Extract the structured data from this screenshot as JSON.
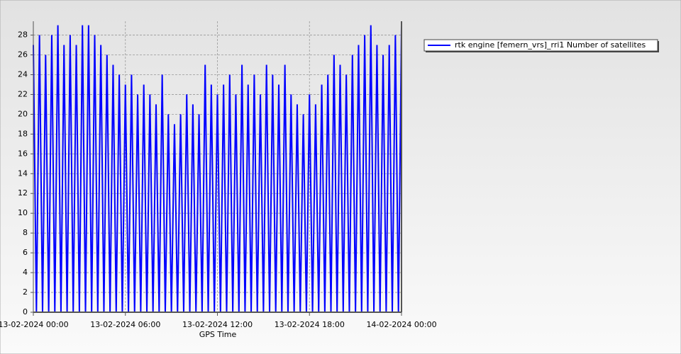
{
  "chart_data": {
    "type": "line",
    "xlabel": "GPS Time",
    "x": [
      0,
      0.2,
      0.4,
      0.6,
      0.8,
      1,
      1.2,
      1.4,
      1.6,
      1.8,
      2,
      2.2,
      2.4,
      2.6,
      2.8,
      3,
      3.2,
      3.4,
      3.6,
      3.8,
      4,
      4.2,
      4.4,
      4.6,
      4.8,
      5,
      5.2,
      5.4,
      5.6,
      5.8,
      6,
      6.2,
      6.4,
      6.6,
      6.8,
      7,
      7.2,
      7.4,
      7.6,
      7.8,
      8,
      8.2,
      8.4,
      8.6,
      8.8,
      9,
      9.2,
      9.4,
      9.6,
      9.8,
      10,
      10.2,
      10.4,
      10.6,
      10.8,
      11,
      11.2,
      11.4,
      11.6,
      11.8,
      12,
      12.2,
      12.4,
      12.6,
      12.8,
      13,
      13.2,
      13.4,
      13.6,
      13.8,
      14,
      14.2,
      14.4,
      14.6,
      14.8,
      15,
      15.2,
      15.4,
      15.6,
      15.8,
      16,
      16.2,
      16.4,
      16.6,
      16.8,
      17,
      17.2,
      17.4,
      17.6,
      17.8,
      18,
      18.2,
      18.4,
      18.6,
      18.8,
      19,
      19.2,
      19.4,
      19.6,
      19.8,
      20,
      20.2,
      20.4,
      20.6,
      20.8,
      21,
      21.2,
      21.4,
      21.6,
      21.8,
      22,
      22.2,
      22.4,
      22.6,
      22.8,
      23,
      23.2,
      23.4,
      23.6,
      23.8,
      24
    ],
    "series": [
      {
        "name": "rtk engine [femern_vrs]_rri1 Number of satellites",
        "color": "#0000ff",
        "values": [
          27,
          0,
          28,
          0,
          26,
          0,
          28,
          0,
          29,
          0,
          27,
          0,
          28,
          0,
          27,
          0,
          29,
          0,
          29,
          0,
          28,
          0,
          27,
          0,
          26,
          0,
          25,
          0,
          24,
          0,
          23,
          0,
          24,
          0,
          22,
          0,
          23,
          0,
          22,
          0,
          21,
          0,
          24,
          0,
          20,
          0,
          19,
          0,
          20,
          0,
          22,
          0,
          21,
          0,
          20,
          0,
          25,
          0,
          23,
          0,
          22,
          0,
          23,
          0,
          24,
          0,
          22,
          0,
          25,
          0,
          23,
          0,
          24,
          0,
          22,
          0,
          25,
          0,
          24,
          0,
          23,
          0,
          25,
          0,
          22,
          0,
          21,
          0,
          20,
          0,
          22,
          0,
          21,
          0,
          23,
          0,
          24,
          0,
          26,
          0,
          25,
          0,
          24,
          0,
          26,
          0,
          27,
          0,
          28,
          0,
          29,
          0,
          27,
          0,
          26,
          0,
          27,
          0,
          28,
          0,
          29
        ]
      }
    ],
    "xlim": [
      0,
      24
    ],
    "xticks": [
      {
        "value": 0,
        "label": "13-02-2024 00:00"
      },
      {
        "value": 6,
        "label": "13-02-2024 06:00"
      },
      {
        "value": 12,
        "label": "13-02-2024 12:00"
      },
      {
        "value": 18,
        "label": "13-02-2024 18:00"
      },
      {
        "value": 24,
        "label": "14-02-2024 00:00"
      }
    ],
    "ylim": [
      0,
      29.4
    ],
    "yticks": [
      0,
      2,
      4,
      6,
      8,
      10,
      12,
      14,
      16,
      18,
      20,
      22,
      24,
      26,
      28
    ],
    "grid": true,
    "legend": "upper-right"
  }
}
